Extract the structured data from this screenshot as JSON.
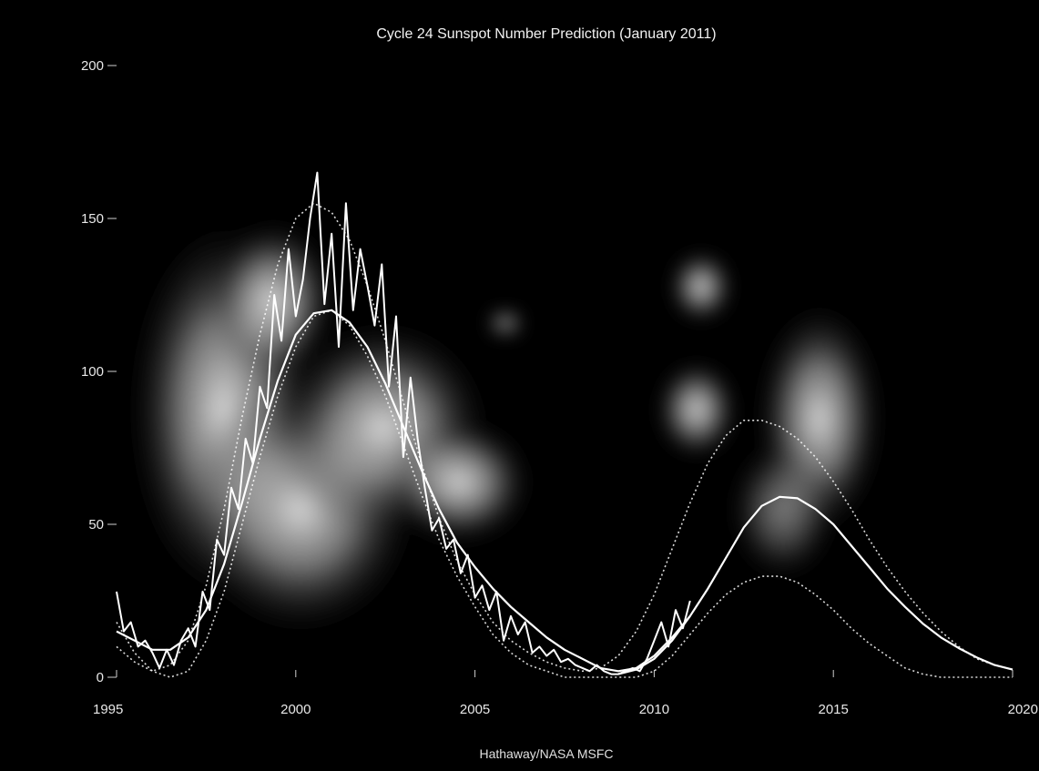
{
  "chart_data": {
    "type": "line",
    "title": "Cycle 24 Sunspot Number Prediction (January 2011)",
    "credit": "Hathaway/NASA MSFC",
    "xlabel": "",
    "ylabel": "",
    "xlim": [
      1995,
      2020
    ],
    "ylim": [
      0,
      200
    ],
    "x_ticks": [
      1995,
      2000,
      2005,
      2010,
      2015,
      2020
    ],
    "y_ticks": [
      0,
      50,
      100,
      150,
      200
    ],
    "y_tick_labels": [
      "0",
      "50",
      "100",
      "150",
      "200"
    ],
    "grid": false,
    "background": "solar corona image (dark)",
    "colors": {
      "background": "#000000",
      "lines": "#ffffff",
      "text": "#e8e8e8"
    },
    "series": [
      {
        "style": "jagged-solid",
        "x": [
          1995.0,
          1995.2,
          1995.4,
          1995.6,
          1995.8,
          1996.0,
          1996.2,
          1996.4,
          1996.6,
          1996.8,
          1997.0,
          1997.2,
          1997.4,
          1997.6,
          1997.8,
          1998.0,
          1998.2,
          1998.4,
          1998.6,
          1998.8,
          1999.0,
          1999.2,
          1999.4,
          1999.6,
          1999.8,
          2000.0,
          2000.2,
          2000.4,
          2000.6,
          2000.8,
          2001.0,
          2001.2,
          2001.4,
          2001.6,
          2001.8,
          2002.0,
          2002.2,
          2002.4,
          2002.6,
          2002.8,
          2003.0,
          2003.2,
          2003.4,
          2003.6,
          2003.8,
          2004.0,
          2004.2,
          2004.4,
          2004.6,
          2004.8,
          2005.0,
          2005.2,
          2005.4,
          2005.6,
          2005.8,
          2006.0,
          2006.2,
          2006.4,
          2006.6,
          2006.8,
          2007.0,
          2007.2,
          2007.4,
          2007.6,
          2007.8,
          2008.0,
          2008.2,
          2008.4,
          2008.6,
          2008.8,
          2009.0,
          2009.2,
          2009.4,
          2009.6,
          2009.8,
          2010.0,
          2010.2,
          2010.4,
          2010.6,
          2010.8,
          2011.0
        ],
        "y": [
          28,
          15,
          18,
          10,
          12,
          8,
          3,
          9,
          4,
          12,
          16,
          10,
          28,
          22,
          45,
          40,
          62,
          55,
          78,
          70,
          95,
          88,
          125,
          110,
          140,
          118,
          130,
          150,
          165,
          122,
          145,
          108,
          155,
          120,
          140,
          128,
          115,
          135,
          95,
          118,
          72,
          98,
          78,
          62,
          48,
          52,
          42,
          45,
          34,
          40,
          26,
          30,
          22,
          28,
          12,
          20,
          14,
          18,
          8,
          10,
          7,
          9,
          5,
          6,
          4,
          3,
          2,
          4,
          2,
          1,
          1,
          2,
          3,
          2,
          6,
          12,
          18,
          10,
          22,
          16,
          25
        ]
      },
      {
        "style": "smooth-solid",
        "x": [
          1995.0,
          1995.5,
          1996.0,
          1996.5,
          1997.0,
          1997.5,
          1998.0,
          1998.5,
          1999.0,
          1999.5,
          2000.0,
          2000.5,
          2001.0,
          2001.5,
          2002.0,
          2002.5,
          2003.0,
          2003.5,
          2004.0,
          2004.5,
          2005.0,
          2005.5,
          2006.0,
          2006.5,
          2007.0,
          2007.5,
          2008.0,
          2008.5,
          2009.0,
          2009.5,
          2010.0,
          2010.5,
          2011.0
        ],
        "y": [
          15,
          12,
          9,
          9,
          13,
          22,
          37,
          57,
          78,
          97,
          112,
          119,
          120,
          116,
          108,
          96,
          82,
          68,
          55,
          44,
          36,
          29,
          23,
          18,
          13,
          9,
          6,
          3,
          2,
          3,
          7,
          13,
          20
        ]
      },
      {
        "style": "smooth-solid",
        "x": [
          2009.0,
          2009.5,
          2010.0,
          2010.5,
          2011.0,
          2011.5,
          2012.0,
          2012.5,
          2013.0,
          2013.5,
          2014.0,
          2014.5,
          2015.0,
          2015.5,
          2016.0,
          2016.5,
          2017.0,
          2017.5,
          2018.0,
          2018.5,
          2019.0,
          2019.5,
          2020.0
        ],
        "y": [
          1.0,
          2.5,
          6.0,
          12.0,
          20.0,
          29.0,
          39.0,
          49.0,
          56.0,
          59.0,
          58.5,
          55.0,
          50.0,
          43.0,
          36.0,
          29.0,
          23.0,
          17.5,
          13.0,
          9.5,
          6.5,
          4.0,
          2.5
        ]
      },
      {
        "style": "dotted",
        "x": [
          1995.0,
          1995.5,
          1996.0,
          1996.5,
          1997.0,
          1997.5,
          1998.0,
          1998.5,
          1999.0,
          1999.5,
          2000.0,
          2000.5,
          2001.0,
          2001.5,
          2002.0,
          2002.5,
          2003.0,
          2003.5,
          2004.0,
          2004.5,
          2005.0,
          2005.5,
          2006.0,
          2006.5,
          2007.0,
          2007.5,
          2008.0,
          2008.5,
          2009.0,
          2009.5,
          2010.0,
          2010.5,
          2011.0,
          2011.5,
          2012.0,
          2012.5,
          2013.0,
          2013.5,
          2014.0,
          2014.5,
          2015.0,
          2015.5,
          2016.0,
          2016.5,
          2017.0,
          2017.5,
          2018.0,
          2018.5,
          2019.0,
          2019.5,
          2020.0
        ],
        "y": [
          10,
          5,
          2,
          4,
          12,
          30,
          55,
          85,
          112,
          135,
          150,
          155,
          152,
          143,
          128,
          110,
          90,
          70,
          52,
          38,
          27,
          18,
          12,
          8,
          5,
          3,
          2,
          3,
          7,
          15,
          27,
          42,
          57,
          70,
          79,
          84,
          84,
          82,
          78,
          72,
          64,
          55,
          45,
          36,
          28,
          21,
          15,
          10,
          6,
          4,
          2.5
        ]
      },
      {
        "style": "dotted",
        "x": [
          1995.0,
          1995.5,
          1996.0,
          1996.5,
          1997.0,
          1997.5,
          1998.0,
          1998.5,
          1999.0,
          1999.5,
          2000.0,
          2000.5,
          2001.0,
          2001.5,
          2002.0,
          2002.5,
          2003.0,
          2003.5,
          2004.0,
          2004.5,
          2005.0,
          2005.5,
          2006.0,
          2006.5,
          2007.0,
          2007.5,
          2008.0,
          2008.5,
          2009.0,
          2009.5,
          2010.0,
          2010.5,
          2011.0,
          2011.5,
          2012.0,
          2012.5,
          2013.0,
          2013.5,
          2014.0,
          2014.5,
          2015.0,
          2015.5,
          2016.0,
          2016.5,
          2017.0,
          2017.5,
          2018.0,
          2018.5,
          2019.0,
          2019.5,
          2020.0
        ],
        "y": [
          18,
          8,
          2,
          0,
          2,
          12,
          28,
          50,
          72,
          92,
          108,
          118,
          120,
          115,
          105,
          92,
          76,
          60,
          45,
          33,
          23,
          14,
          8,
          4,
          2,
          0,
          0,
          0,
          0,
          0,
          2,
          7,
          14,
          21,
          27,
          31,
          33,
          33,
          31,
          27,
          22,
          16,
          11,
          7,
          3,
          1,
          0,
          0,
          0,
          0,
          0
        ]
      }
    ]
  }
}
